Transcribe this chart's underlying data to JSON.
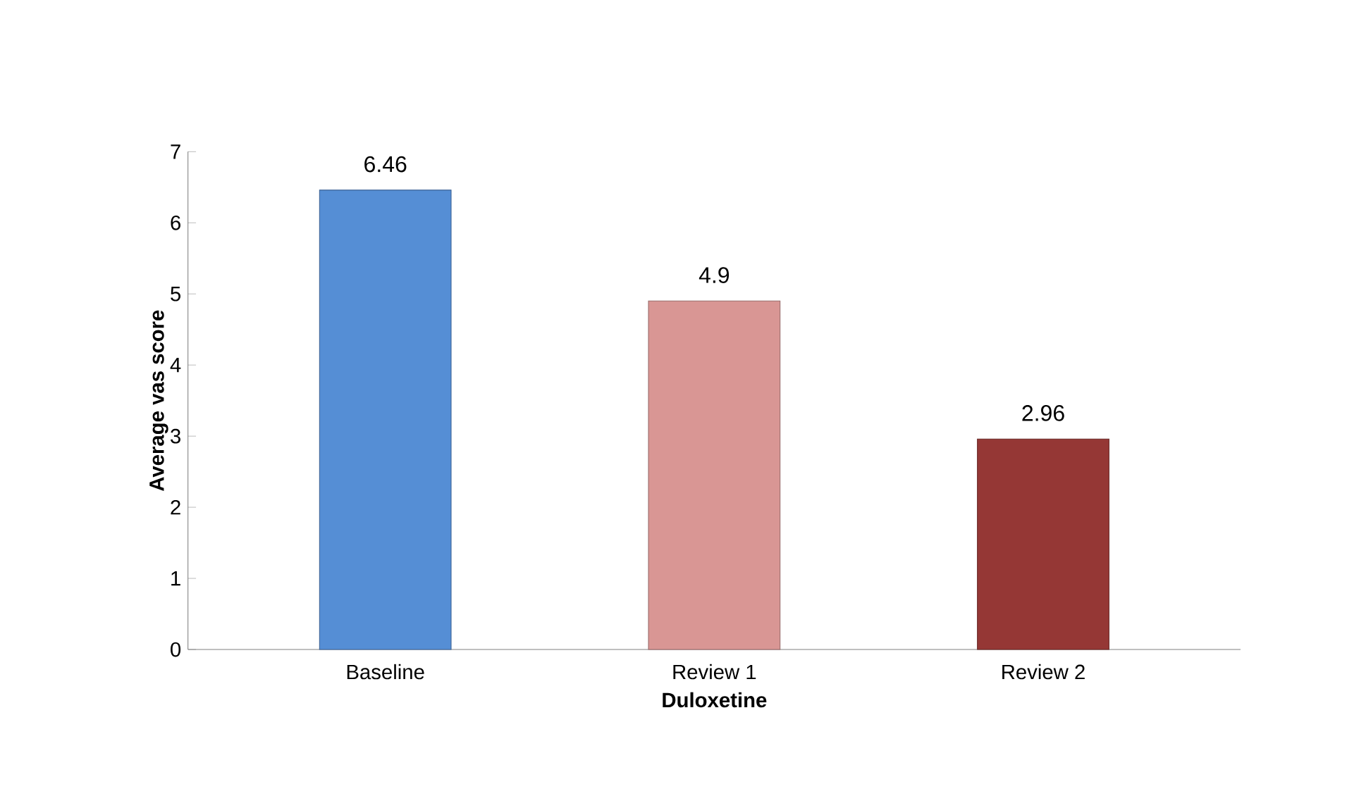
{
  "chart_data": {
    "type": "bar",
    "xlabel": "Duloxetine",
    "ylabel": "Average vas score",
    "categories": [
      "Baseline",
      "Review 1",
      "Review 2"
    ],
    "values": [
      6.46,
      4.9,
      2.96
    ],
    "colors": [
      "#558ed5",
      "#d99694",
      "#953735"
    ],
    "ylim": [
      0,
      7
    ],
    "yticks": [
      0,
      1,
      2,
      3,
      4,
      5,
      6,
      7
    ],
    "data_labels": true
  }
}
